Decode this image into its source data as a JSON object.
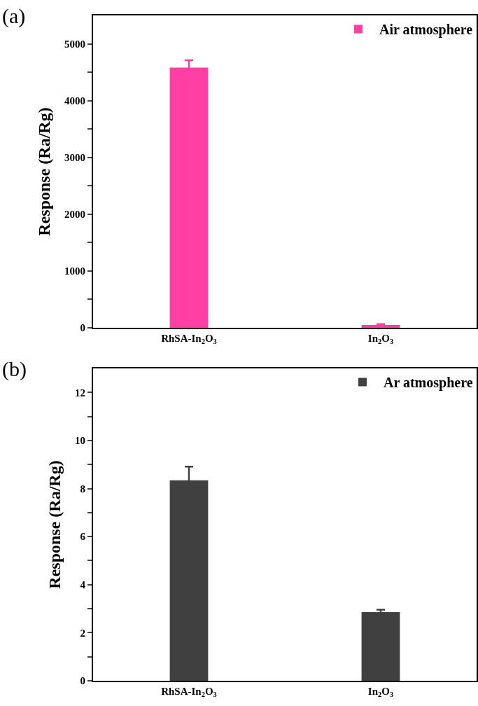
{
  "chart_data": [
    {
      "type": "bar",
      "annotations": [
        "(a)"
      ],
      "ylabel": "Response (Ra/Rg)",
      "categories": [
        "RhSA-In$_{2}$O$_{3}$",
        "In$_{2}$O$_{3}$"
      ],
      "series": [
        {
          "name": "Air atmosphere",
          "color": "#ff3fa4",
          "values": [
            4580,
            50
          ],
          "errors": [
            130,
            15
          ]
        }
      ],
      "ylim": [
        0,
        5500
      ],
      "yticks": [
        0,
        {
          "value": 500,
          "label": null
        },
        1000,
        {
          "value": 1500,
          "label": null
        },
        2000,
        {
          "value": 2500,
          "label": null
        },
        3000,
        {
          "value": 3500,
          "label": null
        },
        4000,
        {
          "value": 4500,
          "label": null
        },
        5000
      ],
      "grid": false,
      "legend": "top right"
    },
    {
      "type": "bar",
      "annotations": [
        "(b)"
      ],
      "ylabel": "Response (Ra/Rg)",
      "categories": [
        "RhSA-In$_{2}$O$_{3}$",
        "In$_{2}$O$_{3}$"
      ],
      "series": [
        {
          "name": "Ar atmosphere",
          "color": "#404040",
          "values": [
            8.34,
            2.86
          ],
          "errors": [
            0.57,
            0.1
          ]
        }
      ],
      "ylim": [
        0,
        13
      ],
      "yticks": [
        0,
        {
          "value": 1,
          "label": null
        },
        2,
        {
          "value": 3,
          "label": null
        },
        4,
        {
          "value": 5,
          "label": null
        },
        6,
        {
          "value": 7,
          "label": null
        },
        8,
        {
          "value": 9,
          "label": null
        },
        10,
        {
          "value": 11,
          "label": null
        },
        12
      ],
      "grid": false,
      "legend": "top right"
    }
  ]
}
